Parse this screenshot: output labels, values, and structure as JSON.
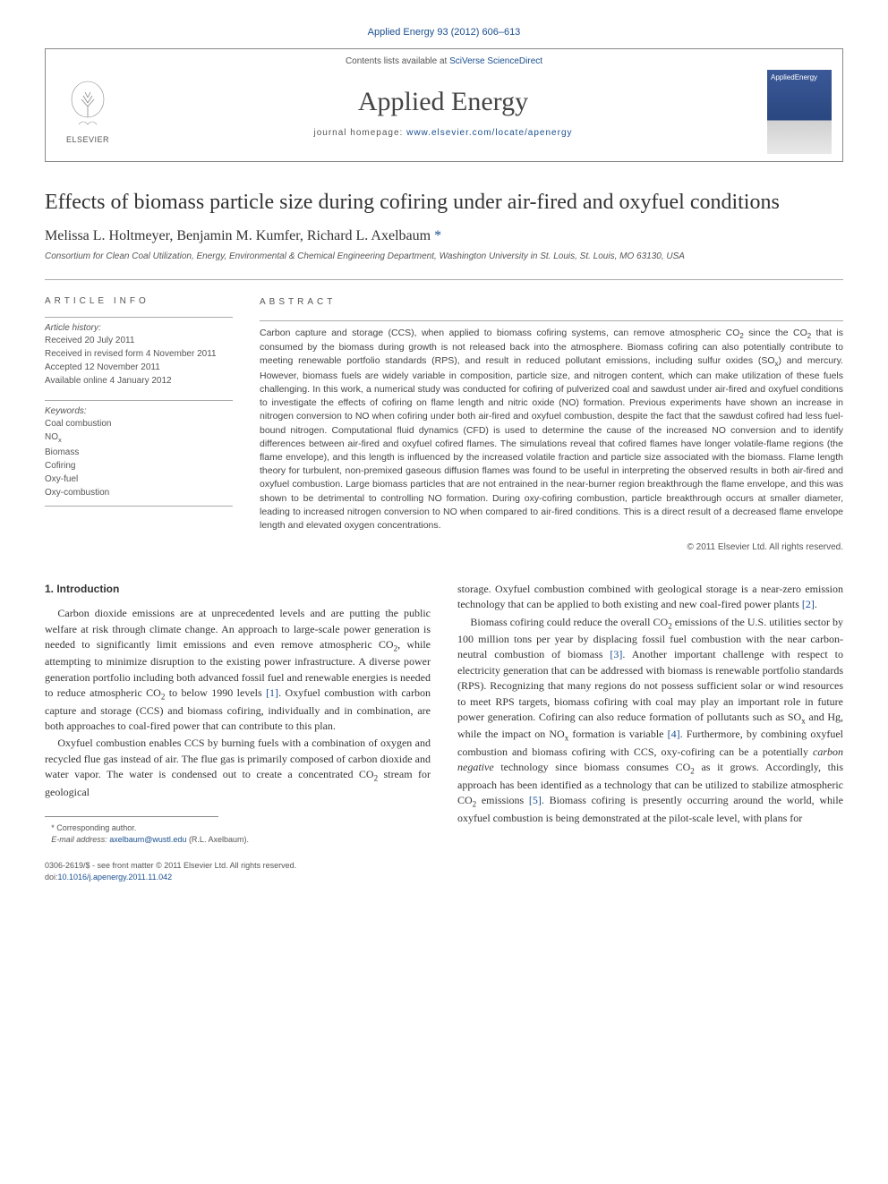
{
  "citation": "Applied Energy 93 (2012) 606–613",
  "header": {
    "contents_prefix": "Contents lists available at ",
    "contents_link": "SciVerse ScienceDirect",
    "journal_name": "Applied Energy",
    "homepage_prefix": "journal homepage: ",
    "homepage_url": "www.elsevier.com/locate/apenergy",
    "publisher_logo_text": "ELSEVIER",
    "cover_text": "AppliedEnergy"
  },
  "title": "Effects of biomass particle size during cofiring under air-fired and oxyfuel conditions",
  "authors": "Melissa L. Holtmeyer, Benjamin M. Kumfer, Richard L. Axelbaum",
  "corresponding_mark": "*",
  "affiliation": "Consortium for Clean Coal Utilization, Energy, Environmental & Chemical Engineering Department, Washington University in St. Louis, St. Louis, MO 63130, USA",
  "article_info": {
    "heading": "ARTICLE INFO",
    "history_label": "Article history:",
    "history": [
      "Received 20 July 2011",
      "Received in revised form 4 November 2011",
      "Accepted 12 November 2011",
      "Available online 4 January 2012"
    ],
    "keywords_label": "Keywords:",
    "keywords": [
      "Coal combustion",
      "NOₓ",
      "Biomass",
      "Cofiring",
      "Oxy-fuel",
      "Oxy-combustion"
    ]
  },
  "abstract": {
    "heading": "ABSTRACT",
    "text": "Carbon capture and storage (CCS), when applied to biomass cofiring systems, can remove atmospheric CO₂ since the CO₂ that is consumed by the biomass during growth is not released back into the atmosphere. Biomass cofiring can also potentially contribute to meeting renewable portfolio standards (RPS), and result in reduced pollutant emissions, including sulfur oxides (SOₓ) and mercury. However, biomass fuels are widely variable in composition, particle size, and nitrogen content, which can make utilization of these fuels challenging. In this work, a numerical study was conducted for cofiring of pulverized coal and sawdust under air-fired and oxyfuel conditions to investigate the effects of cofiring on flame length and nitric oxide (NO) formation. Previous experiments have shown an increase in nitrogen conversion to NO when cofiring under both air-fired and oxyfuel combustion, despite the fact that the sawdust cofired had less fuel-bound nitrogen. Computational fluid dynamics (CFD) is used to determine the cause of the increased NO conversion and to identify differences between air-fired and oxyfuel cofired flames. The simulations reveal that cofired flames have longer volatile-flame regions (the flame envelope), and this length is influenced by the increased volatile fraction and particle size associated with the biomass. Flame length theory for turbulent, non-premixed gaseous diffusion flames was found to be useful in interpreting the observed results in both air-fired and oxyfuel combustion. Large biomass particles that are not entrained in the near-burner region breakthrough the flame envelope, and this was shown to be detrimental to controlling NO formation. During oxy-cofiring combustion, particle breakthrough occurs at smaller diameter, leading to increased nitrogen conversion to NO when compared to air-fired conditions. This is a direct result of a decreased flame envelope length and elevated oxygen concentrations.",
    "copyright": "© 2011 Elsevier Ltd. All rights reserved."
  },
  "body": {
    "section_heading": "1. Introduction",
    "col1_p1": "Carbon dioxide emissions are at unprecedented levels and are putting the public welfare at risk through climate change. An approach to large-scale power generation is needed to significantly limit emissions and even remove atmospheric CO₂, while attempting to minimize disruption to the existing power infrastructure. A diverse power generation portfolio including both advanced fossil fuel and renewable energies is needed to reduce atmospheric CO₂ to below 1990 levels [1]. Oxyfuel combustion with carbon capture and storage (CCS) and biomass cofiring, individually and in combination, are both approaches to coal-fired power that can contribute to this plan.",
    "col1_p2": "Oxyfuel combustion enables CCS by burning fuels with a combination of oxygen and recycled flue gas instead of air. The flue gas is primarily composed of carbon dioxide and water vapor. The water is condensed out to create a concentrated CO₂ stream for geological",
    "col2_p1": "storage. Oxyfuel combustion combined with geological storage is a near-zero emission technology that can be applied to both existing and new coal-fired power plants [2].",
    "col2_p2": "Biomass cofiring could reduce the overall CO₂ emissions of the U.S. utilities sector by 100 million tons per year by displacing fossil fuel combustion with the near carbon-neutral combustion of biomass [3]. Another important challenge with respect to electricity generation that can be addressed with biomass is renewable portfolio standards (RPS). Recognizing that many regions do not possess sufficient solar or wind resources to meet RPS targets, biomass cofiring with coal may play an important role in future power generation. Cofiring can also reduce formation of pollutants such as SOₓ and Hg, while the impact on NOₓ formation is variable [4]. Furthermore, by combining oxyfuel combustion and biomass cofiring with CCS, oxy-cofiring can be a potentially carbon negative technology since biomass consumes CO₂ as it grows. Accordingly, this approach has been identified as a technology that can be utilized to stabilize atmospheric CO₂ emissions [5]. Biomass cofiring is presently occurring around the world, while oxyfuel combustion is being demonstrated at the pilot-scale level, with plans for"
  },
  "footnote": {
    "corr_label": "* Corresponding author.",
    "email_label": "E-mail address:",
    "email": "axelbaum@wustl.edu",
    "email_suffix": "(R.L. Axelbaum)."
  },
  "footer": {
    "line1": "0306-2619/$ - see front matter © 2011 Elsevier Ltd. All rights reserved.",
    "doi_label": "doi:",
    "doi": "10.1016/j.apenergy.2011.11.042"
  },
  "refs": {
    "r1": "[1]",
    "r2": "[2]",
    "r3": "[3]",
    "r4": "[4]",
    "r5": "[5]"
  }
}
